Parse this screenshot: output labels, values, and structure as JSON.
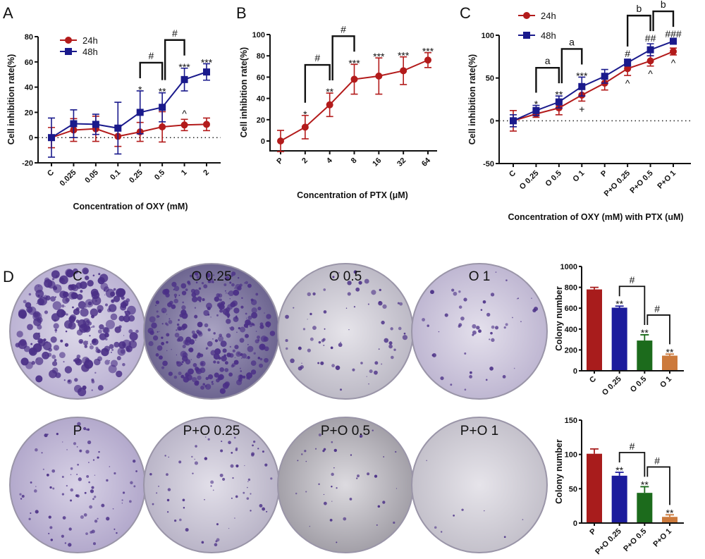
{
  "panels": {
    "A": "A",
    "B": "B",
    "C": "C",
    "D": "D"
  },
  "dish_labels_row1": [
    "C",
    "O 0.25",
    "O 0.5",
    "O 1"
  ],
  "dish_labels_row2": [
    "P",
    "P+O 0.25",
    "P+O 0.5",
    "P+O 1"
  ],
  "chart_data": [
    {
      "id": "A",
      "type": "line",
      "categories": [
        "C",
        "0.025",
        "0.05",
        "0.1",
        "0.25",
        "0.5",
        "1",
        "2"
      ],
      "xlabel": "Concentration of OXY (mM)",
      "ylabel": "Cell inhibition rate(%)",
      "ylim": [
        -20,
        80
      ],
      "yticks": [
        -20,
        0,
        20,
        40,
        60,
        80
      ],
      "reference_line": 0,
      "legend": "top-left",
      "series": [
        {
          "name": "24h",
          "color": "#b31b1b",
          "marker": "circle",
          "values": [
            0,
            6,
            7,
            1,
            4.5,
            8.5,
            10,
            10.5
          ],
          "errors": [
            8,
            9,
            10,
            8,
            7.5,
            12,
            4.5,
            5
          ]
        },
        {
          "name": "48h",
          "color": "#1a1a8c",
          "marker": "square",
          "values": [
            0,
            11,
            10.5,
            7.5,
            20,
            24,
            46,
            52
          ],
          "errors": [
            15.5,
            11,
            8,
            20.5,
            17,
            11.5,
            9,
            6.5
          ]
        }
      ],
      "annotations": [
        {
          "category": "0.25",
          "series": "48h",
          "text": "*"
        },
        {
          "category": "0.5",
          "series": "48h",
          "text": "**"
        },
        {
          "category": "1",
          "series": "48h",
          "text": "***"
        },
        {
          "category": "2",
          "series": "48h",
          "text": "***"
        },
        {
          "category": "1",
          "series": "24h",
          "text": "^"
        }
      ],
      "brackets": [
        {
          "from": "0.25",
          "to": "0.5",
          "text": "#"
        },
        {
          "from": "0.5",
          "to": "1",
          "text": "#"
        }
      ]
    },
    {
      "id": "B",
      "type": "line",
      "categories": [
        "P",
        "2",
        "4",
        "8",
        "16",
        "32",
        "64"
      ],
      "xlabel": "Concentration of PTX (μM)",
      "ylabel": "Cell inhibition rate(%)",
      "ylim": [
        0,
        100
      ],
      "yticks": [
        0,
        20,
        40,
        60,
        80,
        100
      ],
      "series": [
        {
          "color": "#b31b1b",
          "marker": "circle",
          "values": [
            0,
            13,
            34,
            58,
            61,
            66,
            76
          ],
          "errors": [
            10,
            11,
            11,
            14,
            17,
            13,
            7
          ]
        }
      ],
      "annotations": [
        {
          "category": "2",
          "text": "*"
        },
        {
          "category": "4",
          "text": "**"
        },
        {
          "category": "8",
          "text": "***"
        },
        {
          "category": "16",
          "text": "***"
        },
        {
          "category": "32",
          "text": "***"
        },
        {
          "category": "64",
          "text": "***"
        }
      ],
      "brackets": [
        {
          "from": "2",
          "to": "4",
          "text": "#"
        },
        {
          "from": "4",
          "to": "8",
          "text": "#"
        }
      ]
    },
    {
      "id": "C",
      "type": "line",
      "categories": [
        "C",
        "O 0.25",
        "O 0.5",
        "O 1",
        "P",
        "P+O 0.25",
        "P+O 0.5",
        "P+O 1"
      ],
      "xlabel": "Concentration of OXY (mM) with PTX (uM)",
      "ylabel": "Cell inhibition rate(%)",
      "ylim": [
        -50,
        100
      ],
      "yticks": [
        -50,
        0,
        50,
        100
      ],
      "reference_line": 0,
      "legend": "top-left",
      "series": [
        {
          "name": "24h",
          "color": "#b31b1b",
          "marker": "circle",
          "values": [
            0,
            8,
            15,
            30,
            44,
            61,
            70,
            81
          ],
          "errors": [
            12,
            4,
            8,
            7,
            8,
            8,
            6,
            4
          ]
        },
        {
          "name": "48h",
          "color": "#1a1a8c",
          "marker": "square",
          "values": [
            0,
            12,
            22,
            40,
            52,
            68,
            83,
            93
          ],
          "errors": [
            7,
            6,
            7,
            11,
            8,
            4,
            7,
            2
          ]
        }
      ],
      "annotations": [
        {
          "category": "O 0.25",
          "series": "48h",
          "text": "*"
        },
        {
          "category": "O 0.5",
          "series": "48h",
          "text": "**"
        },
        {
          "category": "O 1",
          "series": "48h",
          "text": "***"
        },
        {
          "category": "O 1",
          "series": "24h",
          "text": "+",
          "below": true
        },
        {
          "category": "P+O 0.25",
          "series": "48h",
          "text": "#"
        },
        {
          "category": "P+O 0.25",
          "series": "24h",
          "text": "^",
          "below": true
        },
        {
          "category": "P+O 0.5",
          "series": "48h",
          "text": "##"
        },
        {
          "category": "P+O 0.5",
          "series": "24h",
          "text": "^",
          "below": true
        },
        {
          "category": "P+O 1",
          "series": "48h",
          "text": "###"
        },
        {
          "category": "P+O 1",
          "series": "24h",
          "text": "^",
          "below": true
        }
      ],
      "brackets": [
        {
          "from": "O 0.25",
          "to": "O 0.5",
          "text": "a"
        },
        {
          "from": "O 0.5",
          "to": "O 1",
          "text": "a"
        },
        {
          "from": "P+O 0.25",
          "to": "P+O 0.5",
          "text": "b"
        },
        {
          "from": "P+O 0.5",
          "to": "P+O 1",
          "text": "b"
        }
      ]
    },
    {
      "id": "D1",
      "type": "bar",
      "categories": [
        "C",
        "O 0.25",
        "O 0.5",
        "O 1"
      ],
      "values": [
        780,
        605,
        290,
        145
      ],
      "errors": [
        20,
        15,
        55,
        15
      ],
      "colors": [
        "#a81c1c",
        "#1c1c9c",
        "#1c6b1c",
        "#cc7a3c"
      ],
      "ylabel": "Colony number",
      "ylim": [
        0,
        1000
      ],
      "yticks": [
        0,
        200,
        400,
        600,
        800,
        1000
      ],
      "annotations": [
        "",
        "**",
        "**",
        "**"
      ],
      "brackets": [
        {
          "from": "O 0.25",
          "to": "O 0.5",
          "text": "#"
        },
        {
          "from": "O 0.5",
          "to": "O 1",
          "text": "#"
        }
      ]
    },
    {
      "id": "D2",
      "type": "bar",
      "categories": [
        "P",
        "P+O 0.25",
        "P+O 0.5",
        "P+O 1"
      ],
      "values": [
        101,
        69,
        44,
        9
      ],
      "errors": [
        7,
        5,
        9,
        3
      ],
      "colors": [
        "#a81c1c",
        "#1c1c9c",
        "#1c6b1c",
        "#cc7a3c"
      ],
      "ylabel": "Colony number",
      "ylim": [
        0,
        150
      ],
      "yticks": [
        0,
        50,
        100,
        150
      ],
      "annotations": [
        "",
        "**",
        "**",
        "**"
      ],
      "brackets": [
        {
          "from": "P+O 0.25",
          "to": "P+O 0.5",
          "text": "#"
        },
        {
          "from": "P+O 0.5",
          "to": "P+O 1",
          "text": "#"
        }
      ]
    }
  ]
}
